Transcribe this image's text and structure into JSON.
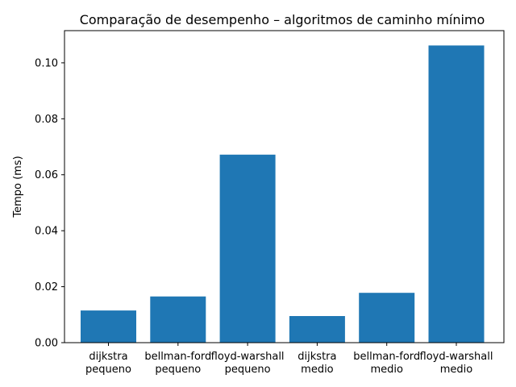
{
  "chart_data": {
    "type": "bar",
    "title": "Comparação de desempenho – algoritmos de caminho mínimo",
    "xlabel": "",
    "ylabel": "Tempo (ms)",
    "categories": [
      [
        "dijkstra",
        "pequeno"
      ],
      [
        "bellman-ford",
        "pequeno"
      ],
      [
        "floyd-warshall",
        "pequeno"
      ],
      [
        "dijkstra",
        "medio"
      ],
      [
        "bellman-ford",
        "medio"
      ],
      [
        "floyd-warshall",
        "medio"
      ]
    ],
    "values": [
      0.0115,
      0.0165,
      0.0672,
      0.0095,
      0.0178,
      0.1062
    ],
    "ylim": [
      0,
      0.1115
    ],
    "yticks": [
      0.0,
      0.02,
      0.04,
      0.06,
      0.08,
      0.1
    ],
    "ytick_labels": [
      "0.00",
      "0.02",
      "0.04",
      "0.06",
      "0.08",
      "0.10"
    ],
    "bar_color": "#1f77b4",
    "grid": false,
    "legend": "none"
  }
}
